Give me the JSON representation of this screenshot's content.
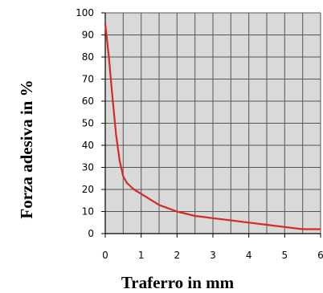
{
  "chart_data": {
    "type": "line",
    "xlabel": "Traferro in mm",
    "ylabel": "Forza adesiva in %",
    "xlim": [
      0,
      6
    ],
    "ylim": [
      0,
      100
    ],
    "x_ticks": [
      0,
      1,
      2,
      3,
      4,
      5,
      6
    ],
    "y_ticks": [
      0,
      10,
      20,
      30,
      40,
      50,
      60,
      70,
      80,
      90,
      100
    ],
    "grid": true,
    "colors": {
      "line": "#d42a2a",
      "plot_bg": "#d9d9d9",
      "grid": "#555555"
    },
    "series": [
      {
        "x": [
          0,
          0.1,
          0.2,
          0.3,
          0.4,
          0.5,
          0.6,
          0.8,
          1.0,
          1.5,
          2.0,
          2.5,
          3.0,
          3.5,
          4.0,
          4.5,
          5.0,
          5.5,
          6.0
        ],
        "values": [
          95,
          80,
          62,
          45,
          33,
          26,
          23,
          20,
          18,
          13,
          10,
          8,
          7,
          6,
          5,
          4,
          3,
          2,
          2
        ]
      }
    ]
  }
}
